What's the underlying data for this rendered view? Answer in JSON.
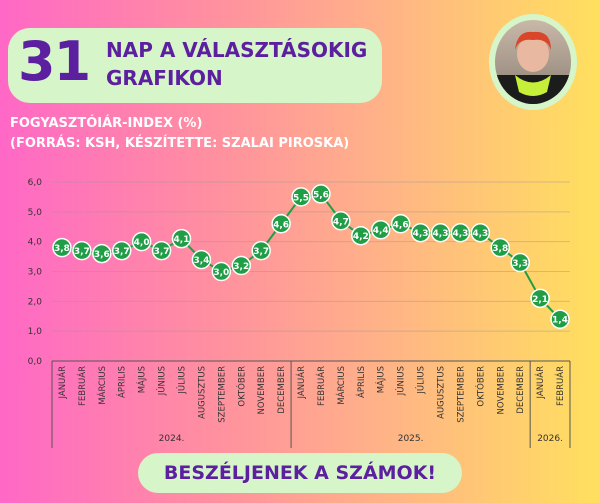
{
  "header": {
    "number": "31",
    "line1": "NAP A VÁLASZTÁSOKIG",
    "line2": "GRAFIKON"
  },
  "subtitle": {
    "line1": "FOGYASZTÓIÁR-INDEX (%)",
    "line2": "(FORRÁS: KSH, KÉSZÍTETTE: SZALAI PIROSKA)"
  },
  "footer": {
    "label": "BESZÉLJENEK A SZÁMOK!"
  },
  "colors": {
    "accent": "#5b1fa0",
    "line": "#1f9e45",
    "panel": "#d6f5c9"
  },
  "chart_data": {
    "type": "line",
    "title": "FOGYASZTÓIÁR-INDEX (%)",
    "ylim": [
      0,
      6
    ],
    "yticks": [
      "0,0",
      "1,0",
      "2,0",
      "3,0",
      "4,0",
      "5,0",
      "6,0"
    ],
    "grid": true,
    "categories": [
      "JANUÁR",
      "FEBRUÁR",
      "MÁRCIUS",
      "ÁPRILIS",
      "MÁJUS",
      "JÚNIUS",
      "JÚLIUS",
      "AUGUSZTUS",
      "SZEPTEMBER",
      "OKTÓBER",
      "NOVEMBER",
      "DECEMBER",
      "JANUÁR",
      "FEBRUÁR",
      "MÁRCIUS",
      "ÁPRILIS",
      "MÁJUS",
      "JÚNIUS",
      "JÚLIUS",
      "AUGUSZTUS",
      "SZEPTEMBER",
      "OKTÓBER",
      "NOVEMBER",
      "DECEMBER",
      "JANUÁR",
      "FEBRUÁR"
    ],
    "years": [
      {
        "label": "2024.",
        "count": 12
      },
      {
        "label": "2025.",
        "count": 12
      },
      {
        "label": "2026.",
        "count": 2
      }
    ],
    "values": [
      3.8,
      3.7,
      3.6,
      3.7,
      4.0,
      3.7,
      4.1,
      3.4,
      3.0,
      3.2,
      3.7,
      4.6,
      5.5,
      5.6,
      4.7,
      4.2,
      4.4,
      4.6,
      4.3,
      4.3,
      4.3,
      4.3,
      3.8,
      3.3,
      2.1,
      1.4
    ],
    "labels": [
      "3,8",
      "3,7",
      "3,6",
      "3,7",
      "4,0",
      "3,7",
      "4,1",
      "3,4",
      "3,0",
      "3,2",
      "3,7",
      "4,6",
      "5,5",
      "5,6",
      "4,7",
      "4,2",
      "4,4",
      "4,6",
      "4,3",
      "4,3",
      "4,3",
      "4,3",
      "3,8",
      "3,3",
      "2,1",
      "1,4"
    ]
  }
}
